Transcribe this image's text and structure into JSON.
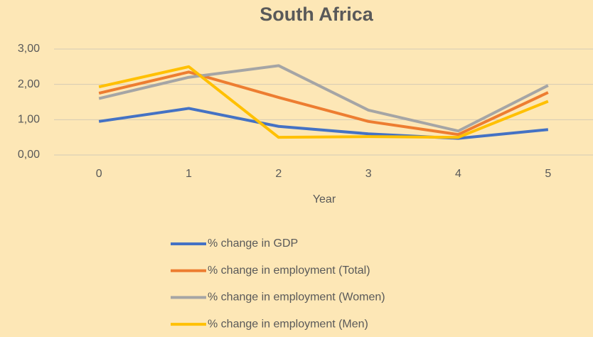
{
  "chart_data": {
    "type": "line",
    "title": "South Africa",
    "x_label": "Year",
    "categories": [
      "0",
      "1",
      "2",
      "3",
      "4",
      "5"
    ],
    "series": [
      {
        "name": "% change in GDP",
        "color": "#4472c4",
        "values": [
          0.95,
          1.32,
          0.81,
          0.6,
          0.47,
          0.72
        ]
      },
      {
        "name": "% change in employment (Total)",
        "color": "#ed7d31",
        "values": [
          1.75,
          2.35,
          1.63,
          0.95,
          0.58,
          1.77
        ]
      },
      {
        "name": "% change in employment (Women)",
        "color": "#a5a5a5",
        "values": [
          1.6,
          2.2,
          2.53,
          1.27,
          0.68,
          1.97
        ]
      },
      {
        "name": "% change in employment (Men)",
        "color": "#ffc000",
        "values": [
          1.93,
          2.5,
          0.5,
          0.52,
          0.5,
          1.52
        ]
      }
    ],
    "ylim": [
      0,
      3
    ],
    "yticks": [
      {
        "value": 0,
        "label": "0,00"
      },
      {
        "value": 1,
        "label": "1,00"
      },
      {
        "value": 2,
        "label": "2,00"
      },
      {
        "value": 3,
        "label": "3,00"
      }
    ],
    "grid": true,
    "legend": "bottom"
  }
}
